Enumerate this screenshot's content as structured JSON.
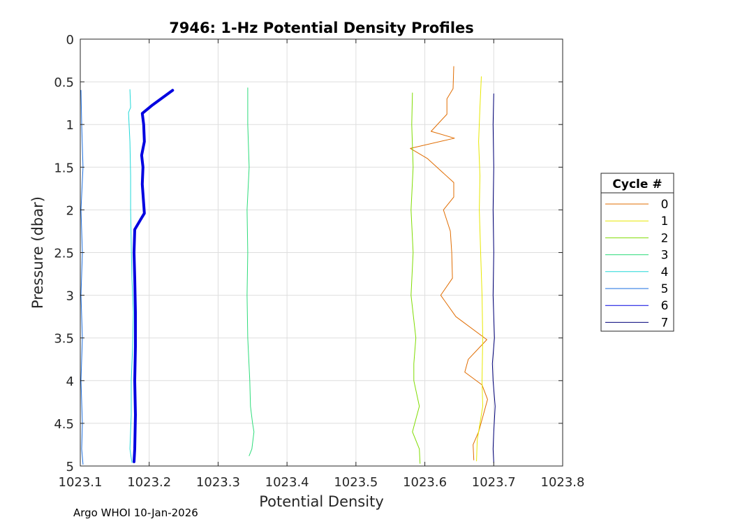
{
  "chart_data": {
    "type": "line",
    "title": "7946: 1-Hz Potential Density Profiles",
    "xlabel": "Potential Density",
    "ylabel": "Pressure (dbar)",
    "xlim": [
      1023.1,
      1023.8
    ],
    "ylim": [
      0,
      5
    ],
    "y_reversed": true,
    "grid": true,
    "x_ticks": [
      "1023.1",
      "1023.2",
      "1023.3",
      "1023.4",
      "1023.5",
      "1023.6",
      "1023.7",
      "1023.8"
    ],
    "y_ticks": [
      "0",
      "0.5",
      "1",
      "1.5",
      "2",
      "2.5",
      "3",
      "3.5",
      "4",
      "4.5",
      "5"
    ],
    "legend": {
      "title": "Cycle #",
      "placement": "outside-right"
    },
    "series": [
      {
        "name": "0",
        "color": "#e06c00",
        "width": 1,
        "points": [
          [
            1023.642,
            0.32
          ],
          [
            1023.641,
            0.58
          ],
          [
            1023.632,
            0.7
          ],
          [
            1023.632,
            0.88
          ],
          [
            1023.609,
            1.08
          ],
          [
            1023.643,
            1.16
          ],
          [
            1023.579,
            1.28
          ],
          [
            1023.604,
            1.4
          ],
          [
            1023.642,
            1.68
          ],
          [
            1023.642,
            1.85
          ],
          [
            1023.627,
            2.0
          ],
          [
            1023.637,
            2.25
          ],
          [
            1023.639,
            2.5
          ],
          [
            1023.64,
            2.8
          ],
          [
            1023.623,
            3.0
          ],
          [
            1023.645,
            3.25
          ],
          [
            1023.69,
            3.52
          ],
          [
            1023.663,
            3.75
          ],
          [
            1023.658,
            3.9
          ],
          [
            1023.683,
            4.05
          ],
          [
            1023.691,
            4.22
          ],
          [
            1023.678,
            4.6
          ],
          [
            1023.67,
            4.75
          ],
          [
            1023.671,
            4.93
          ]
        ]
      },
      {
        "name": "1",
        "color": "#e8e800",
        "width": 1,
        "points": [
          [
            1023.682,
            0.44
          ],
          [
            1023.68,
            0.8
          ],
          [
            1023.678,
            1.2
          ],
          [
            1023.68,
            1.6
          ],
          [
            1023.679,
            2.0
          ],
          [
            1023.681,
            2.5
          ],
          [
            1023.683,
            3.0
          ],
          [
            1023.684,
            3.5
          ],
          [
            1023.683,
            4.0
          ],
          [
            1023.684,
            4.3
          ],
          [
            1023.676,
            4.7
          ],
          [
            1023.675,
            4.94
          ]
        ]
      },
      {
        "name": "2",
        "color": "#7fdc00",
        "width": 1,
        "points": [
          [
            1023.582,
            0.63
          ],
          [
            1023.581,
            1.0
          ],
          [
            1023.583,
            1.5
          ],
          [
            1023.58,
            2.0
          ],
          [
            1023.583,
            2.5
          ],
          [
            1023.58,
            3.0
          ],
          [
            1023.587,
            3.5
          ],
          [
            1023.584,
            3.8
          ],
          [
            1023.584,
            4.0
          ],
          [
            1023.592,
            4.3
          ],
          [
            1023.582,
            4.6
          ],
          [
            1023.592,
            4.8
          ],
          [
            1023.593,
            4.97
          ]
        ]
      },
      {
        "name": "3",
        "color": "#2ddc7a",
        "width": 1,
        "points": [
          [
            1023.343,
            0.57
          ],
          [
            1023.343,
            1.0
          ],
          [
            1023.345,
            1.5
          ],
          [
            1023.342,
            2.0
          ],
          [
            1023.343,
            2.5
          ],
          [
            1023.342,
            3.0
          ],
          [
            1023.343,
            3.5
          ],
          [
            1023.346,
            4.0
          ],
          [
            1023.347,
            4.3
          ],
          [
            1023.35,
            4.5
          ],
          [
            1023.352,
            4.6
          ],
          [
            1023.349,
            4.8
          ],
          [
            1023.345,
            4.88
          ]
        ]
      },
      {
        "name": "4",
        "color": "#20d8d8",
        "width": 1,
        "points": [
          [
            1023.172,
            0.59
          ],
          [
            1023.173,
            0.8
          ],
          [
            1023.17,
            0.86
          ],
          [
            1023.172,
            1.2
          ],
          [
            1023.173,
            1.6
          ],
          [
            1023.173,
            2.0
          ],
          [
            1023.174,
            2.4
          ],
          [
            1023.175,
            2.8
          ],
          [
            1023.177,
            3.2
          ],
          [
            1023.176,
            3.6
          ],
          [
            1023.174,
            4.0
          ],
          [
            1023.174,
            4.4
          ],
          [
            1023.172,
            4.8
          ],
          [
            1023.175,
            4.96
          ]
        ]
      },
      {
        "name": "5",
        "color": "#1a6ee0",
        "width": 1,
        "points": [
          [
            1023.101,
            0.6
          ],
          [
            1023.102,
            1.0
          ],
          [
            1023.104,
            1.5
          ],
          [
            1023.101,
            2.0
          ],
          [
            1023.103,
            2.5
          ],
          [
            1023.101,
            3.0
          ],
          [
            1023.103,
            3.5
          ],
          [
            1023.101,
            4.0
          ],
          [
            1023.103,
            4.5
          ],
          [
            1023.102,
            4.8
          ],
          [
            1023.104,
            4.98
          ]
        ]
      },
      {
        "name": "6",
        "color": "#0000e0",
        "width": 4,
        "points": [
          [
            1023.234,
            0.6
          ],
          [
            1023.205,
            0.77
          ],
          [
            1023.19,
            0.87
          ],
          [
            1023.192,
            1.0
          ],
          [
            1023.193,
            1.2
          ],
          [
            1023.189,
            1.36
          ],
          [
            1023.191,
            1.5
          ],
          [
            1023.19,
            1.7
          ],
          [
            1023.193,
            2.04
          ],
          [
            1023.187,
            2.12
          ],
          [
            1023.179,
            2.23
          ],
          [
            1023.178,
            2.5
          ],
          [
            1023.179,
            2.8
          ],
          [
            1023.18,
            3.2
          ],
          [
            1023.18,
            3.6
          ],
          [
            1023.179,
            4.0
          ],
          [
            1023.18,
            4.4
          ],
          [
            1023.179,
            4.8
          ],
          [
            1023.178,
            4.95
          ]
        ]
      },
      {
        "name": "7",
        "color": "#00007a",
        "width": 1,
        "points": [
          [
            1023.7,
            0.64
          ],
          [
            1023.699,
            1.0
          ],
          [
            1023.7,
            1.5
          ],
          [
            1023.699,
            2.0
          ],
          [
            1023.7,
            2.5
          ],
          [
            1023.699,
            3.0
          ],
          [
            1023.701,
            3.5
          ],
          [
            1023.698,
            3.8
          ],
          [
            1023.699,
            4.0
          ],
          [
            1023.702,
            4.3
          ],
          [
            1023.7,
            4.6
          ],
          [
            1023.699,
            4.8
          ],
          [
            1023.7,
            4.96
          ]
        ]
      }
    ]
  },
  "footer": "Argo WHOI 10-Jan-2026"
}
